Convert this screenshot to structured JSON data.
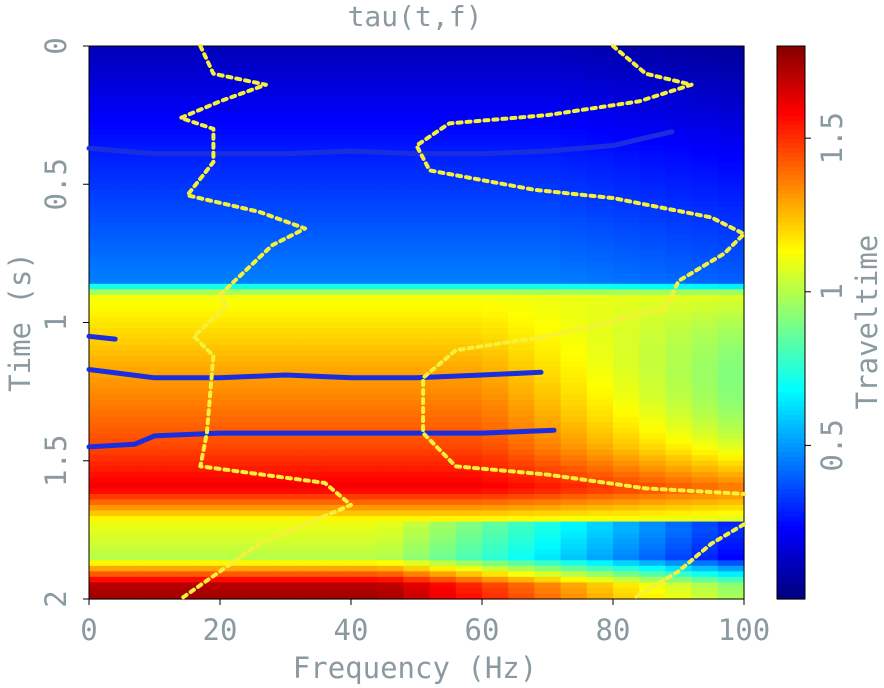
{
  "chart_data": {
    "type": "heatmap",
    "title": "tau(t,f)",
    "xlabel": "Frequency (Hz)",
    "ylabel": "Time (s)",
    "xlim": [
      0,
      100
    ],
    "ylim": [
      0,
      2
    ],
    "x_ticks": [
      0,
      20,
      40,
      60,
      80,
      100
    ],
    "y_ticks": [
      0,
      0.5,
      1,
      1.5,
      2
    ],
    "colorbar": {
      "label": "Traveltime",
      "range": [
        0,
        1.8
      ],
      "ticks": [
        0.5,
        1,
        1.5
      ],
      "colormap": "jet"
    },
    "field": {
      "description_bands": [
        {
          "t": 0.0,
          "value": 0.1
        },
        {
          "t": 0.4,
          "value": 0.28
        },
        {
          "t": 0.85,
          "value": 0.45
        },
        {
          "t": 0.9,
          "value": 1.1
        },
        {
          "t": 1.2,
          "value": 1.3
        },
        {
          "t": 1.45,
          "value": 1.45
        },
        {
          "t": 1.6,
          "value": 1.6
        },
        {
          "t": 1.72,
          "value": 1.1
        },
        {
          "t": 1.85,
          "value": 1.0
        },
        {
          "t": 1.95,
          "value": 1.7
        },
        {
          "t": 2.0,
          "value": 1.75
        }
      ]
    },
    "series": [
      {
        "style": "solid",
        "color": "#1a2ee0",
        "points": [
          [
            0,
            0.37
          ],
          [
            10,
            0.39
          ],
          [
            20,
            0.39
          ],
          [
            30,
            0.39
          ],
          [
            40,
            0.38
          ],
          [
            50,
            0.39
          ],
          [
            60,
            0.39
          ],
          [
            70,
            0.38
          ],
          [
            80,
            0.36
          ],
          [
            89,
            0.31
          ]
        ]
      },
      {
        "style": "solid",
        "color": "#1a2ee0",
        "points": [
          [
            0,
            1.05
          ],
          [
            4,
            1.06
          ]
        ]
      },
      {
        "style": "solid",
        "color": "#1a2ee0",
        "points": [
          [
            0,
            1.17
          ],
          [
            10,
            1.2
          ],
          [
            20,
            1.2
          ],
          [
            30,
            1.19
          ],
          [
            40,
            1.2
          ],
          [
            50,
            1.2
          ],
          [
            60,
            1.19
          ],
          [
            69,
            1.18
          ]
        ]
      },
      {
        "style": "solid",
        "color": "#1a2ee0",
        "points": [
          [
            0,
            1.45
          ],
          [
            7,
            1.44
          ],
          [
            10,
            1.41
          ],
          [
            20,
            1.4
          ],
          [
            30,
            1.4
          ],
          [
            40,
            1.4
          ],
          [
            50,
            1.4
          ],
          [
            60,
            1.4
          ],
          [
            71,
            1.39
          ]
        ]
      },
      {
        "style": "dotted",
        "color": "#f5f03a",
        "points": [
          [
            17,
            0.0
          ],
          [
            19,
            0.1
          ],
          [
            27,
            0.14
          ],
          [
            20,
            0.2
          ],
          [
            14,
            0.26
          ],
          [
            19,
            0.3
          ],
          [
            19,
            0.42
          ],
          [
            15,
            0.54
          ],
          [
            26,
            0.6
          ],
          [
            33,
            0.66
          ],
          [
            28,
            0.72
          ],
          [
            20,
            0.9
          ],
          [
            21,
            0.94
          ],
          [
            16,
            1.05
          ],
          [
            19,
            1.12
          ],
          [
            18,
            1.4
          ],
          [
            17,
            1.52
          ],
          [
            36,
            1.58
          ],
          [
            40,
            1.66
          ],
          [
            26,
            1.8
          ],
          [
            14,
            2.0
          ]
        ]
      },
      {
        "style": "dotted",
        "color": "#f5f03a",
        "points": [
          [
            80,
            0.0
          ],
          [
            85,
            0.1
          ],
          [
            92,
            0.14
          ],
          [
            84,
            0.2
          ],
          [
            70,
            0.25
          ],
          [
            55,
            0.28
          ],
          [
            50,
            0.36
          ],
          [
            52,
            0.45
          ],
          [
            68,
            0.52
          ],
          [
            80,
            0.55
          ],
          [
            95,
            0.62
          ],
          [
            100,
            0.68
          ],
          [
            97,
            0.75
          ],
          [
            90,
            0.85
          ],
          [
            88,
            0.95
          ],
          [
            70,
            1.05
          ],
          [
            56,
            1.1
          ],
          [
            51,
            1.2
          ],
          [
            51,
            1.4
          ],
          [
            56,
            1.52
          ],
          [
            70,
            1.55
          ],
          [
            85,
            1.6
          ],
          [
            100,
            1.62
          ]
        ]
      },
      {
        "style": "dotted",
        "color": "#f5f03a",
        "points": [
          [
            100,
            1.73
          ],
          [
            95,
            1.8
          ],
          [
            90,
            1.9
          ],
          [
            83,
            2.0
          ]
        ]
      }
    ]
  }
}
